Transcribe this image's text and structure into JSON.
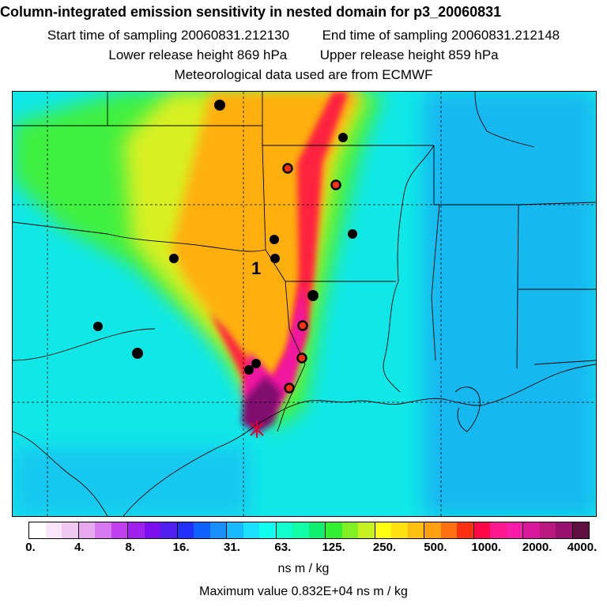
{
  "title": "Column-integrated emission sensitivity in nested domain for p3_20060831",
  "sampling": {
    "start_label": "Start time of sampling",
    "start_value": "20060831.212130",
    "end_label": "End time of sampling",
    "end_value": "20060831.212148"
  },
  "release": {
    "lower_label": "Lower release height",
    "lower_value": "869 hPa",
    "upper_label": "Upper release height",
    "upper_value": "859 hPa"
  },
  "met_note": "Meteorological data used are from ECMWF",
  "map": {
    "track_label": "1",
    "release_marker_icon": "asterisk-icon",
    "station_icon": "filled-circle-icon"
  },
  "colorbar": {
    "colors": [
      "#ffffff",
      "#f8e6f8",
      "#f0c8f0",
      "#e8a8f0",
      "#d878f0",
      "#c040f0",
      "#a020f0",
      "#7a10f0",
      "#5020f0",
      "#2030ff",
      "#1060ff",
      "#1890ff",
      "#18b8ff",
      "#18e0ff",
      "#10fff0",
      "#10ffd0",
      "#10ffa8",
      "#10f070",
      "#30f030",
      "#80f020",
      "#c8f020",
      "#ffff10",
      "#ffe010",
      "#ffc010",
      "#ffa010",
      "#ff7010",
      "#ff3010",
      "#ff0848",
      "#ff1890",
      "#f81ca8",
      "#d81898",
      "#b81880",
      "#981070",
      "#601040"
    ],
    "tick_labels": [
      "0.",
      "4.",
      "8.",
      "16.",
      "31.",
      "63.",
      "125.",
      "250.",
      "500.",
      "1000.",
      "2000.",
      "4000."
    ],
    "units": "ns m / kg"
  },
  "maximum": {
    "label": "Maximum value",
    "value": "0.832E+04",
    "units": "ns m / kg"
  }
}
